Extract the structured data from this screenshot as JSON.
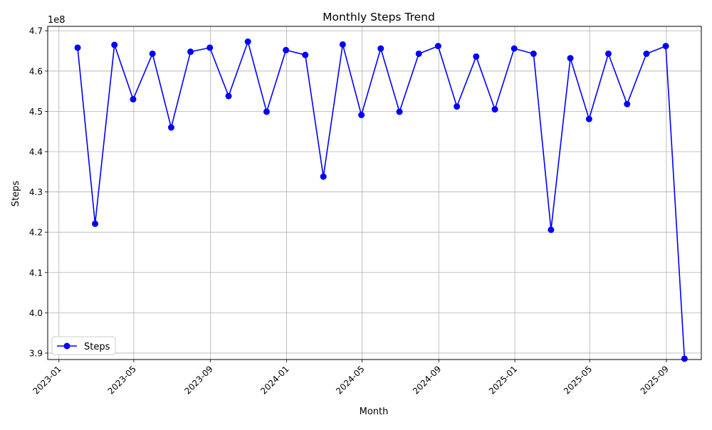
{
  "chart_data": {
    "type": "line",
    "title": "Monthly Steps Trend",
    "xlabel": "Month",
    "ylabel": "Steps",
    "y_offset_label": "1e8",
    "y_multiplier": 100000000,
    "grid": true,
    "legend_placement": "lower-left",
    "series_color": "#0000ff",
    "x_ticks": [
      "2023-01",
      "2023-05",
      "2023-09",
      "2024-01",
      "2024-05",
      "2024-09",
      "2025-01",
      "2025-05",
      "2025-09"
    ],
    "y_ticks": [
      "3.9",
      "4.0",
      "4.1",
      "4.2",
      "4.3",
      "4.4",
      "4.5",
      "4.6",
      "4.7"
    ],
    "xlim": [
      "2022-12-14",
      "2025-10-27"
    ],
    "ylim": [
      3.884,
      4.711
    ],
    "x": [
      "2023-01-31",
      "2023-02-28",
      "2023-03-31",
      "2023-04-30",
      "2023-05-31",
      "2023-06-30",
      "2023-07-31",
      "2023-08-31",
      "2023-09-30",
      "2023-10-31",
      "2023-11-30",
      "2023-12-31",
      "2024-01-31",
      "2024-02-29",
      "2024-03-31",
      "2024-04-30",
      "2024-05-31",
      "2024-06-30",
      "2024-07-31",
      "2024-08-31",
      "2024-09-30",
      "2024-10-31",
      "2024-11-30",
      "2024-12-31",
      "2025-01-31",
      "2025-02-28",
      "2025-03-31",
      "2025-04-30",
      "2025-05-31",
      "2025-06-30",
      "2025-07-31",
      "2025-08-31",
      "2025-09-30"
    ],
    "series": [
      {
        "name": "Steps",
        "values": [
          4.658,
          4.221,
          4.665,
          4.53,
          4.643,
          4.46,
          4.648,
          4.658,
          4.538,
          4.673,
          4.499,
          4.652,
          4.64,
          4.338,
          4.666,
          4.491,
          4.656,
          4.499,
          4.643,
          4.662,
          4.512,
          4.636,
          4.505,
          4.656,
          4.643,
          4.206,
          4.632,
          4.481,
          4.643,
          4.518,
          4.643,
          4.662,
          3.886
        ]
      }
    ]
  }
}
